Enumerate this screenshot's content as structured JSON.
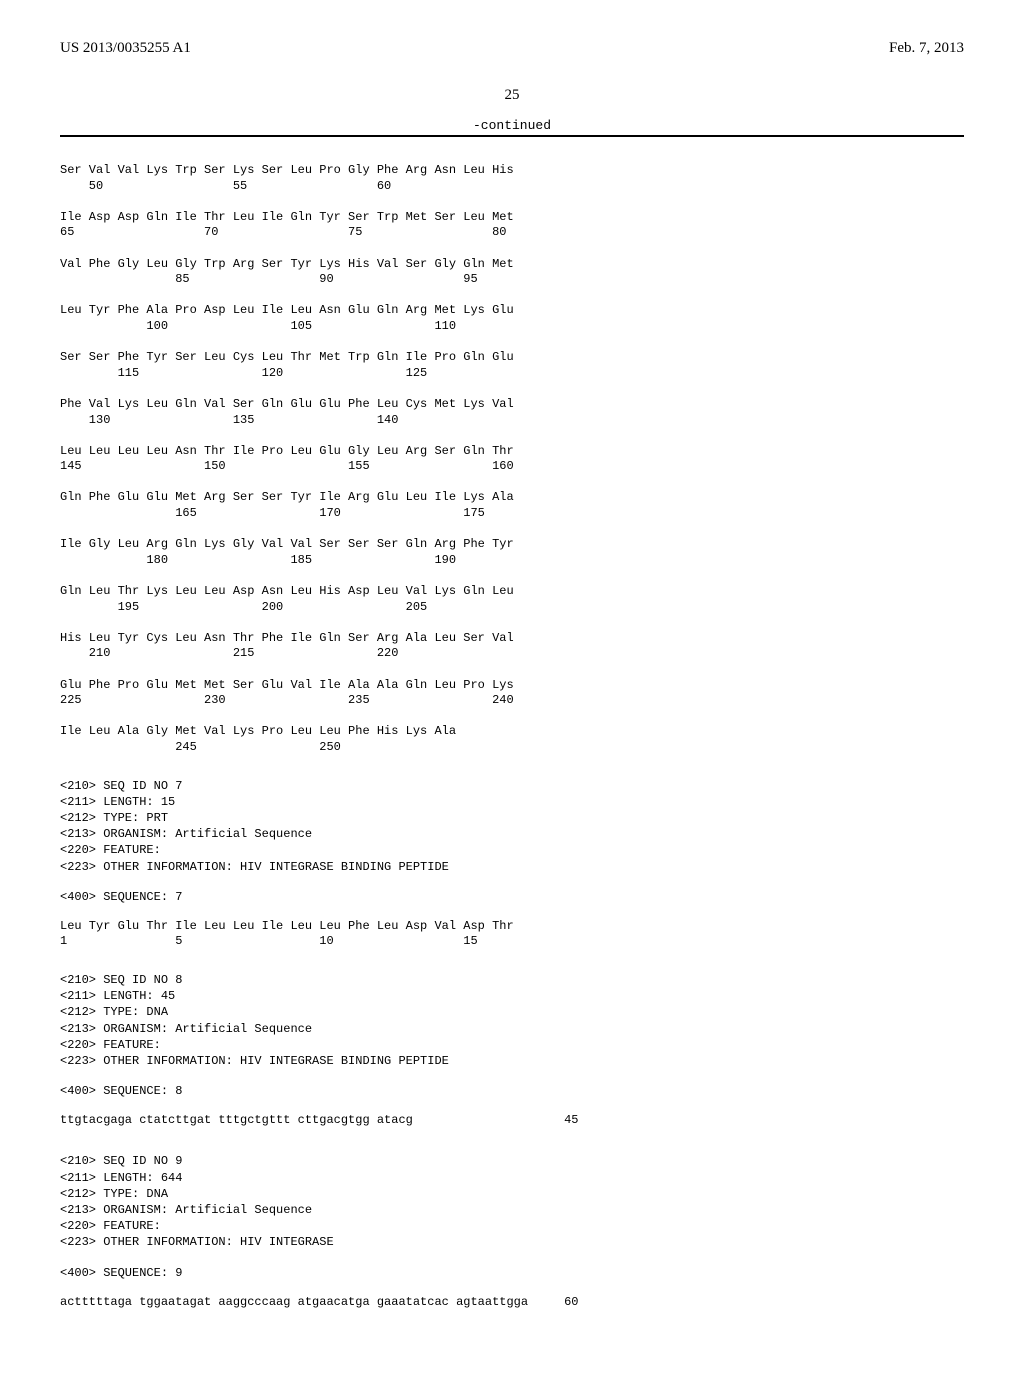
{
  "header": {
    "pub_number": "US 2013/0035255 A1",
    "pub_date": "Feb. 7, 2013"
  },
  "page_number": "25",
  "continued_label": "-continued",
  "protein_seq6": {
    "rows": [
      {
        "residues": [
          "Ser",
          "Val",
          "Val",
          "Lys",
          "Trp",
          "Ser",
          "Lys",
          "Ser",
          "Leu",
          "Pro",
          "Gly",
          "Phe",
          "Arg",
          "Asn",
          "Leu",
          "His"
        ],
        "numbers": [
          "",
          "50",
          "",
          "",
          "",
          "",
          "55",
          "",
          "",
          "",
          "",
          "60",
          "",
          "",
          "",
          ""
        ]
      },
      {
        "residues": [
          "Ile",
          "Asp",
          "Asp",
          "Gln",
          "Ile",
          "Thr",
          "Leu",
          "Ile",
          "Gln",
          "Tyr",
          "Ser",
          "Trp",
          "Met",
          "Ser",
          "Leu",
          "Met"
        ],
        "numbers": [
          "65",
          "",
          "",
          "",
          "",
          "70",
          "",
          "",
          "",
          "",
          "75",
          "",
          "",
          "",
          "",
          "80"
        ]
      },
      {
        "residues": [
          "Val",
          "Phe",
          "Gly",
          "Leu",
          "Gly",
          "Trp",
          "Arg",
          "Ser",
          "Tyr",
          "Lys",
          "His",
          "Val",
          "Ser",
          "Gly",
          "Gln",
          "Met"
        ],
        "numbers": [
          "",
          "",
          "",
          "",
          "85",
          "",
          "",
          "",
          "",
          "90",
          "",
          "",
          "",
          "",
          "95",
          ""
        ]
      },
      {
        "residues": [
          "Leu",
          "Tyr",
          "Phe",
          "Ala",
          "Pro",
          "Asp",
          "Leu",
          "Ile",
          "Leu",
          "Asn",
          "Glu",
          "Gln",
          "Arg",
          "Met",
          "Lys",
          "Glu"
        ],
        "numbers": [
          "",
          "",
          "",
          "100",
          "",
          "",
          "",
          "",
          "105",
          "",
          "",
          "",
          "",
          "110",
          "",
          ""
        ]
      },
      {
        "residues": [
          "Ser",
          "Ser",
          "Phe",
          "Tyr",
          "Ser",
          "Leu",
          "Cys",
          "Leu",
          "Thr",
          "Met",
          "Trp",
          "Gln",
          "Ile",
          "Pro",
          "Gln",
          "Glu"
        ],
        "numbers": [
          "",
          "",
          "115",
          "",
          "",
          "",
          "",
          "120",
          "",
          "",
          "",
          "",
          "125",
          "",
          "",
          ""
        ]
      },
      {
        "residues": [
          "Phe",
          "Val",
          "Lys",
          "Leu",
          "Gln",
          "Val",
          "Ser",
          "Gln",
          "Glu",
          "Glu",
          "Phe",
          "Leu",
          "Cys",
          "Met",
          "Lys",
          "Val"
        ],
        "numbers": [
          "",
          "130",
          "",
          "",
          "",
          "",
          "135",
          "",
          "",
          "",
          "",
          "140",
          "",
          "",
          "",
          ""
        ]
      },
      {
        "residues": [
          "Leu",
          "Leu",
          "Leu",
          "Leu",
          "Asn",
          "Thr",
          "Ile",
          "Pro",
          "Leu",
          "Glu",
          "Gly",
          "Leu",
          "Arg",
          "Ser",
          "Gln",
          "Thr"
        ],
        "numbers": [
          "145",
          "",
          "",
          "",
          "",
          "150",
          "",
          "",
          "",
          "",
          "155",
          "",
          "",
          "",
          "",
          "160"
        ]
      },
      {
        "residues": [
          "Gln",
          "Phe",
          "Glu",
          "Glu",
          "Met",
          "Arg",
          "Ser",
          "Ser",
          "Tyr",
          "Ile",
          "Arg",
          "Glu",
          "Leu",
          "Ile",
          "Lys",
          "Ala"
        ],
        "numbers": [
          "",
          "",
          "",
          "",
          "165",
          "",
          "",
          "",
          "",
          "170",
          "",
          "",
          "",
          "",
          "175",
          ""
        ]
      },
      {
        "residues": [
          "Ile",
          "Gly",
          "Leu",
          "Arg",
          "Gln",
          "Lys",
          "Gly",
          "Val",
          "Val",
          "Ser",
          "Ser",
          "Ser",
          "Gln",
          "Arg",
          "Phe",
          "Tyr"
        ],
        "numbers": [
          "",
          "",
          "",
          "180",
          "",
          "",
          "",
          "",
          "185",
          "",
          "",
          "",
          "",
          "190",
          "",
          ""
        ]
      },
      {
        "residues": [
          "Gln",
          "Leu",
          "Thr",
          "Lys",
          "Leu",
          "Leu",
          "Asp",
          "Asn",
          "Leu",
          "His",
          "Asp",
          "Leu",
          "Val",
          "Lys",
          "Gln",
          "Leu"
        ],
        "numbers": [
          "",
          "",
          "195",
          "",
          "",
          "",
          "",
          "200",
          "",
          "",
          "",
          "",
          "205",
          "",
          "",
          ""
        ]
      },
      {
        "residues": [
          "His",
          "Leu",
          "Tyr",
          "Cys",
          "Leu",
          "Asn",
          "Thr",
          "Phe",
          "Ile",
          "Gln",
          "Ser",
          "Arg",
          "Ala",
          "Leu",
          "Ser",
          "Val"
        ],
        "numbers": [
          "",
          "210",
          "",
          "",
          "",
          "",
          "215",
          "",
          "",
          "",
          "",
          "220",
          "",
          "",
          "",
          ""
        ]
      },
      {
        "residues": [
          "Glu",
          "Phe",
          "Pro",
          "Glu",
          "Met",
          "Met",
          "Ser",
          "Glu",
          "Val",
          "Ile",
          "Ala",
          "Ala",
          "Gln",
          "Leu",
          "Pro",
          "Lys"
        ],
        "numbers": [
          "225",
          "",
          "",
          "",
          "",
          "230",
          "",
          "",
          "",
          "",
          "235",
          "",
          "",
          "",
          "",
          "240"
        ]
      },
      {
        "residues": [
          "Ile",
          "Leu",
          "Ala",
          "Gly",
          "Met",
          "Val",
          "Lys",
          "Pro",
          "Leu",
          "Leu",
          "Phe",
          "His",
          "Lys",
          "Ala"
        ],
        "numbers": [
          "",
          "",
          "",
          "",
          "245",
          "",
          "",
          "",
          "",
          "250",
          "",
          "",
          "",
          ""
        ]
      }
    ]
  },
  "meta7": {
    "lines": [
      "<210> SEQ ID NO 7",
      "<211> LENGTH: 15",
      "<212> TYPE: PRT",
      "<213> ORGANISM: Artificial Sequence",
      "<220> FEATURE:",
      "<223> OTHER INFORMATION: HIV INTEGRASE BINDING PEPTIDE"
    ],
    "seq_label": "<400> SEQUENCE: 7"
  },
  "protein_seq7": {
    "rows": [
      {
        "residues": [
          "Leu",
          "Tyr",
          "Glu",
          "Thr",
          "Ile",
          "Leu",
          "Leu",
          "Ile",
          "Leu",
          "Leu",
          "Phe",
          "Leu",
          "Asp",
          "Val",
          "Asp",
          "Thr"
        ],
        "numbers": [
          "1",
          "",
          "",
          "",
          "5",
          "",
          "",
          "",
          "",
          "10",
          "",
          "",
          "",
          "",
          "15",
          ""
        ]
      }
    ]
  },
  "meta8": {
    "lines": [
      "<210> SEQ ID NO 8",
      "<211> LENGTH: 45",
      "<212> TYPE: DNA",
      "<213> ORGANISM: Artificial Sequence",
      "<220> FEATURE:",
      "<223> OTHER INFORMATION: HIV INTEGRASE BINDING PEPTIDE"
    ],
    "seq_label": "<400> SEQUENCE: 8"
  },
  "dna_seq8": {
    "line": "ttgtacgaga ctatcttgat tttgctgttt cttgacgtgg atacg",
    "count": "45"
  },
  "meta9": {
    "lines": [
      "<210> SEQ ID NO 9",
      "<211> LENGTH: 644",
      "<212> TYPE: DNA",
      "<213> ORGANISM: Artificial Sequence",
      "<220> FEATURE:",
      "<223> OTHER INFORMATION: HIV INTEGRASE"
    ],
    "seq_label": "<400> SEQUENCE: 9"
  },
  "dna_seq9": {
    "line": "actttttaga tggaatagat aaggcccaag atgaacatga gaaatatcac agtaattgga",
    "count": "60"
  },
  "style": {
    "mono_font": "Courier New",
    "mono_fontsize": 12,
    "serif_font": "Times New Roman",
    "header_fontsize": 15,
    "background_color": "#ffffff",
    "text_color": "#000000",
    "rule_color": "#000000",
    "col_width_chars": 4
  }
}
